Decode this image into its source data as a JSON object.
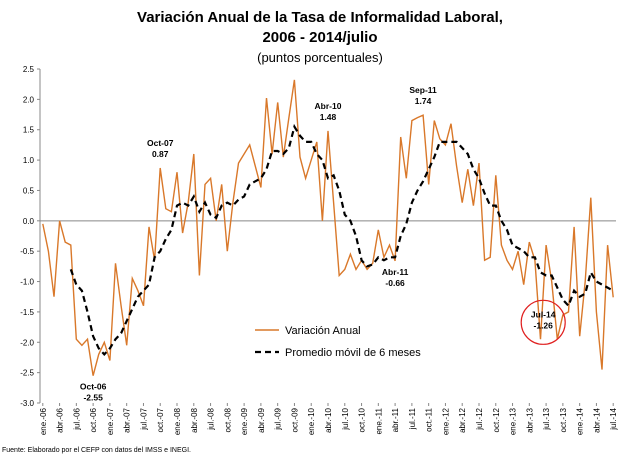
{
  "chart_data": {
    "type": "line",
    "title": [
      "Variación Anual de la Tasa de Informalidad Laboral,",
      "2006 - 2014/julio"
    ],
    "subtitle": "(puntos porcentuales)",
    "source": "Fuente: Elaborado por el CEFP con datos del IMSS e INEGI.",
    "categories": [
      "ene.-06",
      null,
      null,
      "abr.-06",
      null,
      null,
      "jul.-06",
      null,
      null,
      "oct.-06",
      null,
      null,
      "ene.-07",
      null,
      null,
      "abr.-07",
      null,
      null,
      "jul.-07",
      null,
      null,
      "oct.-07",
      null,
      null,
      "ene.-08",
      null,
      null,
      "abr.-08",
      null,
      null,
      "jul.-08",
      null,
      null,
      "oct.-08",
      null,
      null,
      "ene.-09",
      null,
      null,
      "abr.-09",
      null,
      null,
      "jul.-09",
      null,
      null,
      "oct.-09",
      null,
      null,
      "ene.-10",
      null,
      null,
      "abr.-10",
      null,
      null,
      "jul.-10",
      null,
      null,
      "oct.-10",
      null,
      null,
      "ene.-11",
      null,
      null,
      "abr.-11",
      null,
      null,
      "jul.-11",
      null,
      null,
      "oct.-11",
      null,
      null,
      "ene.-12",
      null,
      null,
      "abr.-12",
      null,
      null,
      "jul.-12",
      null,
      null,
      "oct.-12",
      null,
      null,
      "ene.-13",
      null,
      null,
      "abr.-13",
      null,
      null,
      "jul.-13",
      null,
      null,
      "oct.-13",
      null,
      null,
      "ene.-14",
      null,
      null,
      "abr.-14",
      null,
      null,
      "jul.-14"
    ],
    "series": [
      {
        "name": "Variación Anual",
        "color": "#d9782a",
        "dash": false,
        "values": [
          -0.05,
          -0.5,
          -1.25,
          0.0,
          -0.35,
          -0.4,
          -1.95,
          -2.05,
          -1.95,
          -2.55,
          -2.2,
          -2.0,
          -2.3,
          -0.7,
          -1.4,
          -2.05,
          -0.95,
          -1.15,
          -1.4,
          -0.1,
          -0.65,
          0.87,
          0.2,
          0.15,
          0.8,
          -0.2,
          0.3,
          1.1,
          -0.9,
          0.6,
          0.7,
          0.0,
          0.6,
          -0.5,
          0.3,
          0.95,
          1.1,
          1.25,
          0.9,
          0.55,
          2.02,
          1.1,
          1.95,
          1.05,
          1.7,
          2.32,
          1.05,
          0.7,
          1.0,
          1.3,
          0.0,
          1.48,
          0.3,
          -0.9,
          -0.8,
          -0.55,
          -0.8,
          -0.65,
          -0.8,
          -0.7,
          -0.15,
          -0.6,
          -0.4,
          -0.66,
          1.38,
          0.7,
          1.65,
          1.7,
          1.74,
          0.6,
          1.65,
          1.35,
          1.25,
          1.6,
          0.9,
          0.3,
          0.85,
          0.25,
          0.95,
          -0.65,
          -0.6,
          0.75,
          -0.4,
          -0.65,
          -0.8,
          -0.5,
          -1.05,
          -0.35,
          -0.65,
          -1.95,
          -0.4,
          -1.0,
          -1.95,
          -1.55,
          -1.5,
          -0.1,
          -1.9,
          -1.0,
          0.38,
          -1.5,
          -2.45,
          -0.4,
          -1.26
        ]
      },
      {
        "name": "Promedio móvil de 6 meses",
        "color": "#000000",
        "dash": true,
        "values": [
          null,
          null,
          null,
          null,
          null,
          -0.8,
          -1.05,
          -1.15,
          -1.5,
          -1.9,
          -2.1,
          -2.2,
          -2.1,
          -1.95,
          -1.85,
          -1.65,
          -1.45,
          -1.25,
          -1.15,
          -1.05,
          -0.6,
          -0.5,
          -0.3,
          -0.15,
          0.25,
          0.3,
          0.25,
          0.4,
          0.15,
          0.3,
          0.1,
          0.05,
          0.25,
          0.3,
          0.25,
          0.35,
          0.4,
          0.6,
          0.65,
          0.7,
          0.85,
          1.15,
          1.15,
          1.1,
          1.2,
          1.55,
          1.4,
          1.3,
          1.3,
          1.1,
          1.0,
          0.7,
          0.75,
          0.5,
          0.1,
          0.0,
          -0.25,
          -0.65,
          -0.75,
          -0.72,
          -0.6,
          -0.65,
          -0.6,
          -0.6,
          -0.25,
          -0.05,
          0.3,
          0.5,
          0.65,
          0.85,
          1.05,
          1.3,
          1.3,
          1.3,
          1.3,
          1.2,
          1.1,
          0.85,
          0.7,
          0.45,
          0.25,
          0.25,
          0.0,
          -0.15,
          -0.4,
          -0.45,
          -0.5,
          -0.6,
          -0.6,
          -0.85,
          -0.9,
          -0.9,
          -1.1,
          -1.3,
          -1.4,
          -1.15,
          -1.25,
          -1.2,
          -0.85,
          -1.0,
          -1.05,
          -1.1,
          -1.15
        ]
      }
    ],
    "annotations": [
      {
        "text": "Oct-06",
        "value": -2.55,
        "position": "below"
      },
      {
        "text": "Oct-07",
        "value": 0.87,
        "position": "above"
      },
      {
        "text": "Abr-10",
        "value": 1.48,
        "position": "above"
      },
      {
        "text": "Sep-11",
        "value": 1.74,
        "position": "above"
      },
      {
        "text": "Abr-11",
        "value": -0.66,
        "position": "below"
      },
      {
        "text": "Jul-14",
        "value": -1.26,
        "position": "circled"
      }
    ],
    "ylim": [
      -3,
      2.5
    ],
    "yticks": [
      2.5,
      {
        "value": 2,
        "label": "2.0"
      },
      1.5,
      {
        "value": 1,
        "label": "1.0"
      },
      0.5,
      {
        "value": 0,
        "label": "0.0"
      },
      -0.5,
      {
        "value": -1,
        "label": "-1.0"
      },
      -1.5,
      {
        "value": -2,
        "label": "-2.0"
      },
      -2.5,
      {
        "value": -3,
        "label": "-3.0"
      }
    ],
    "legend": "bottom-center"
  }
}
